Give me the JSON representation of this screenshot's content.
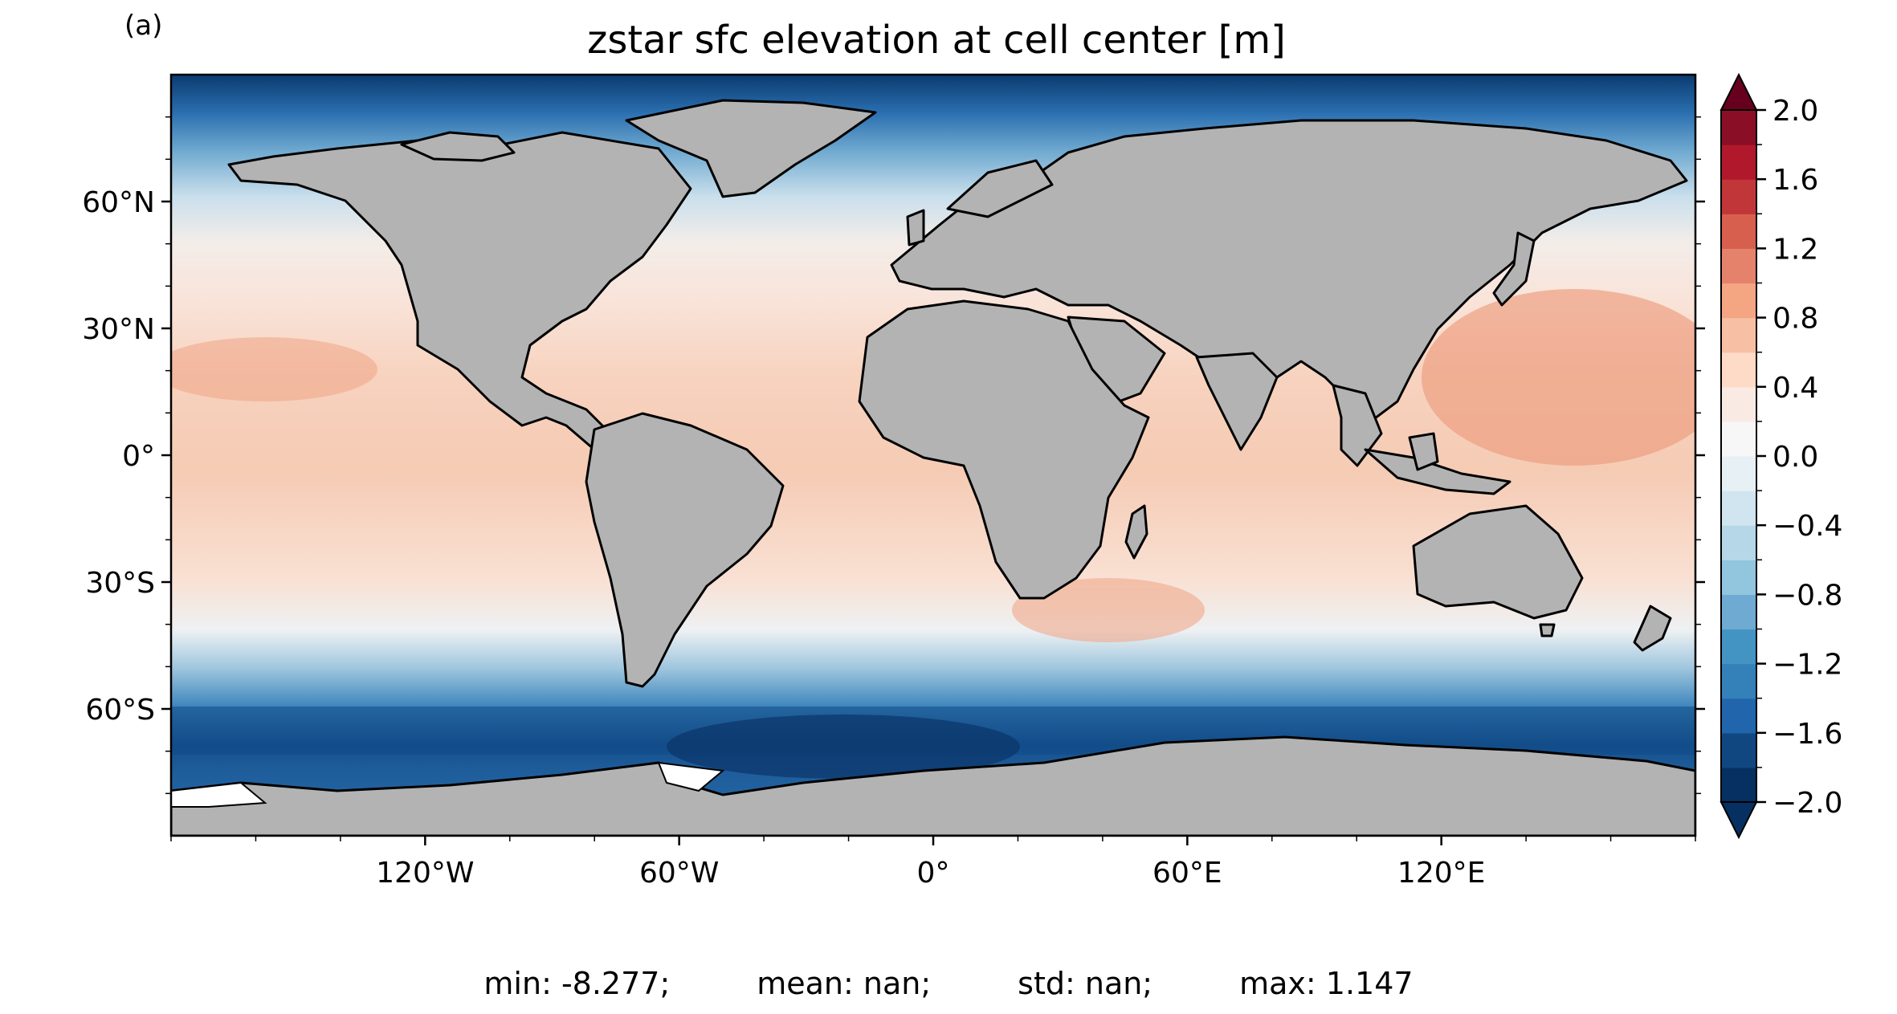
{
  "panel_label": "(a)",
  "title": "zstar sfc elevation at cell center [m]",
  "stats": {
    "min": "min: -8.277;",
    "mean": "mean: nan;",
    "std": "std: nan;",
    "max": "max: 1.147"
  },
  "axes": {
    "x_ticks": [
      "120°W",
      "60°W",
      "0°",
      "60°E",
      "120°E"
    ],
    "y_ticks": [
      "60°N",
      "30°N",
      "0°",
      "30°S",
      "60°S"
    ]
  },
  "colorbar": {
    "tick_labels": [
      "2.0",
      "1.6",
      "1.2",
      "0.8",
      "0.4",
      "0.0",
      "−0.4",
      "−0.8",
      "−1.2",
      "−1.6",
      "−2.0"
    ],
    "colormap": [
      "#053061",
      "#114781",
      "#2166ac",
      "#3480b9",
      "#4393c3",
      "#6eaad1",
      "#92c5de",
      "#b5d7e8",
      "#d1e5f0",
      "#e7f0f4",
      "#f7f7f7",
      "#f9ebe3",
      "#fddbc7",
      "#f7c0a4",
      "#f4a582",
      "#e5826b",
      "#d6604d",
      "#c13739",
      "#b2182b",
      "#890e26",
      "#67001f"
    ],
    "extend": "both",
    "range": [
      -2.0,
      2.0
    ]
  },
  "colors": {
    "land": "#b3b3b3",
    "coast": "#000000"
  },
  "chart_data": {
    "type": "heatmap",
    "title": "zstar sfc elevation at cell center [m]",
    "xlabel": "",
    "ylabel": "",
    "lon_range": [
      -180,
      180
    ],
    "lat_range": [
      -90,
      90
    ],
    "vmin": -2.0,
    "vmax": 2.0,
    "levels_step": 0.2,
    "value_range_shown": [
      -8.277,
      1.147
    ]
  }
}
